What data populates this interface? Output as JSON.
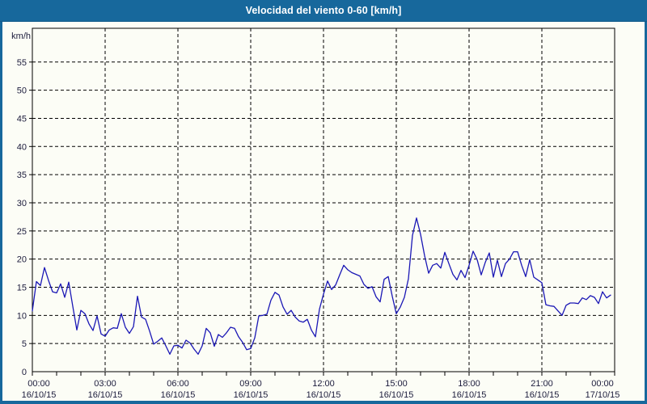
{
  "window": {
    "title": "Velocidad del viento 0-60 [km/h]"
  },
  "chart_data": {
    "type": "line",
    "title": "Velocidad del viento 0-60 [km/h]",
    "ylabel": "km/h",
    "unit_label": "km/h",
    "ylim": [
      0,
      61
    ],
    "y_ticks": [
      0,
      5,
      10,
      15,
      20,
      25,
      30,
      35,
      40,
      45,
      50,
      55
    ],
    "grid": "dashed",
    "legend": "none",
    "x_axis": {
      "hours_span": 24,
      "tick_interval_minutes": 60,
      "label_interval_minutes": 180,
      "labels": [
        {
          "time": "00:00",
          "date": "16/10/15"
        },
        {
          "time": "03:00",
          "date": "16/10/15"
        },
        {
          "time": "06:00",
          "date": "16/10/15"
        },
        {
          "time": "09:00",
          "date": "16/10/15"
        },
        {
          "time": "12:00",
          "date": "16/10/15"
        },
        {
          "time": "15:00",
          "date": "16/10/15"
        },
        {
          "time": "18:00",
          "date": "16/10/15"
        },
        {
          "time": "21:00",
          "date": "16/10/15"
        },
        {
          "time": "00:00",
          "date": "17/10/15"
        }
      ]
    },
    "start_time": "00:00",
    "sample_interval_minutes": 10,
    "series": [
      {
        "name": "Velocidad del viento",
        "color": "#1a17b5",
        "values": [
          10.8,
          16.0,
          15.3,
          18.5,
          16.2,
          14.2,
          14.0,
          15.6,
          13.2,
          15.9,
          11.6,
          7.4,
          10.9,
          10.3,
          8.5,
          7.3,
          9.9,
          6.7,
          6.3,
          7.4,
          7.8,
          7.7,
          10.3,
          7.9,
          6.8,
          8.0,
          13.4,
          9.7,
          9.3,
          7.2,
          4.9,
          5.4,
          6.0,
          4.6,
          3.1,
          4.6,
          4.7,
          4.2,
          5.6,
          5.1,
          4.0,
          3.1,
          4.6,
          7.7,
          6.9,
          4.5,
          6.6,
          6.1,
          6.9,
          7.9,
          7.7,
          6.2,
          5.2,
          3.9,
          4.1,
          6.0,
          9.9,
          10.0,
          10.2,
          12.7,
          14.1,
          13.6,
          11.5,
          10.2,
          10.9,
          9.7,
          9.0,
          8.8,
          9.3,
          7.4,
          6.2,
          11.1,
          13.8,
          16.1,
          14.6,
          15.4,
          17.2,
          18.9,
          18.1,
          17.6,
          17.3,
          17.0,
          15.5,
          14.8,
          15.1,
          13.3,
          12.4,
          16.4,
          16.9,
          13.4,
          10.3,
          11.5,
          13.2,
          16.5,
          24.2,
          27.3,
          24.4,
          20.6,
          17.5,
          18.9,
          19.2,
          18.4,
          21.2,
          19.2,
          17.3,
          16.3,
          18.0,
          16.7,
          18.9,
          21.4,
          19.9,
          17.2,
          19.4,
          21.1,
          16.8,
          19.8,
          16.9,
          19.2,
          20.0,
          21.3,
          21.3,
          18.9,
          16.9,
          19.9,
          16.8,
          16.3,
          15.8,
          11.9,
          11.7,
          11.6,
          10.8,
          10.0,
          11.8,
          12.2,
          12.2,
          12.1,
          13.1,
          12.8,
          13.5,
          13.2,
          12.1,
          14.2,
          13.1,
          13.6
        ]
      }
    ]
  },
  "colors": {
    "titlebar_bg": "#17689c",
    "titlebar_text": "#ffffff",
    "side_border": "#17689c",
    "bottom_border": "#1d3e5e",
    "plot_bg": "#fcfdf6",
    "plot_frame": "#000000",
    "grid": "#000000",
    "tick_label": "#1c1c3c",
    "line": "#1a17b5"
  }
}
